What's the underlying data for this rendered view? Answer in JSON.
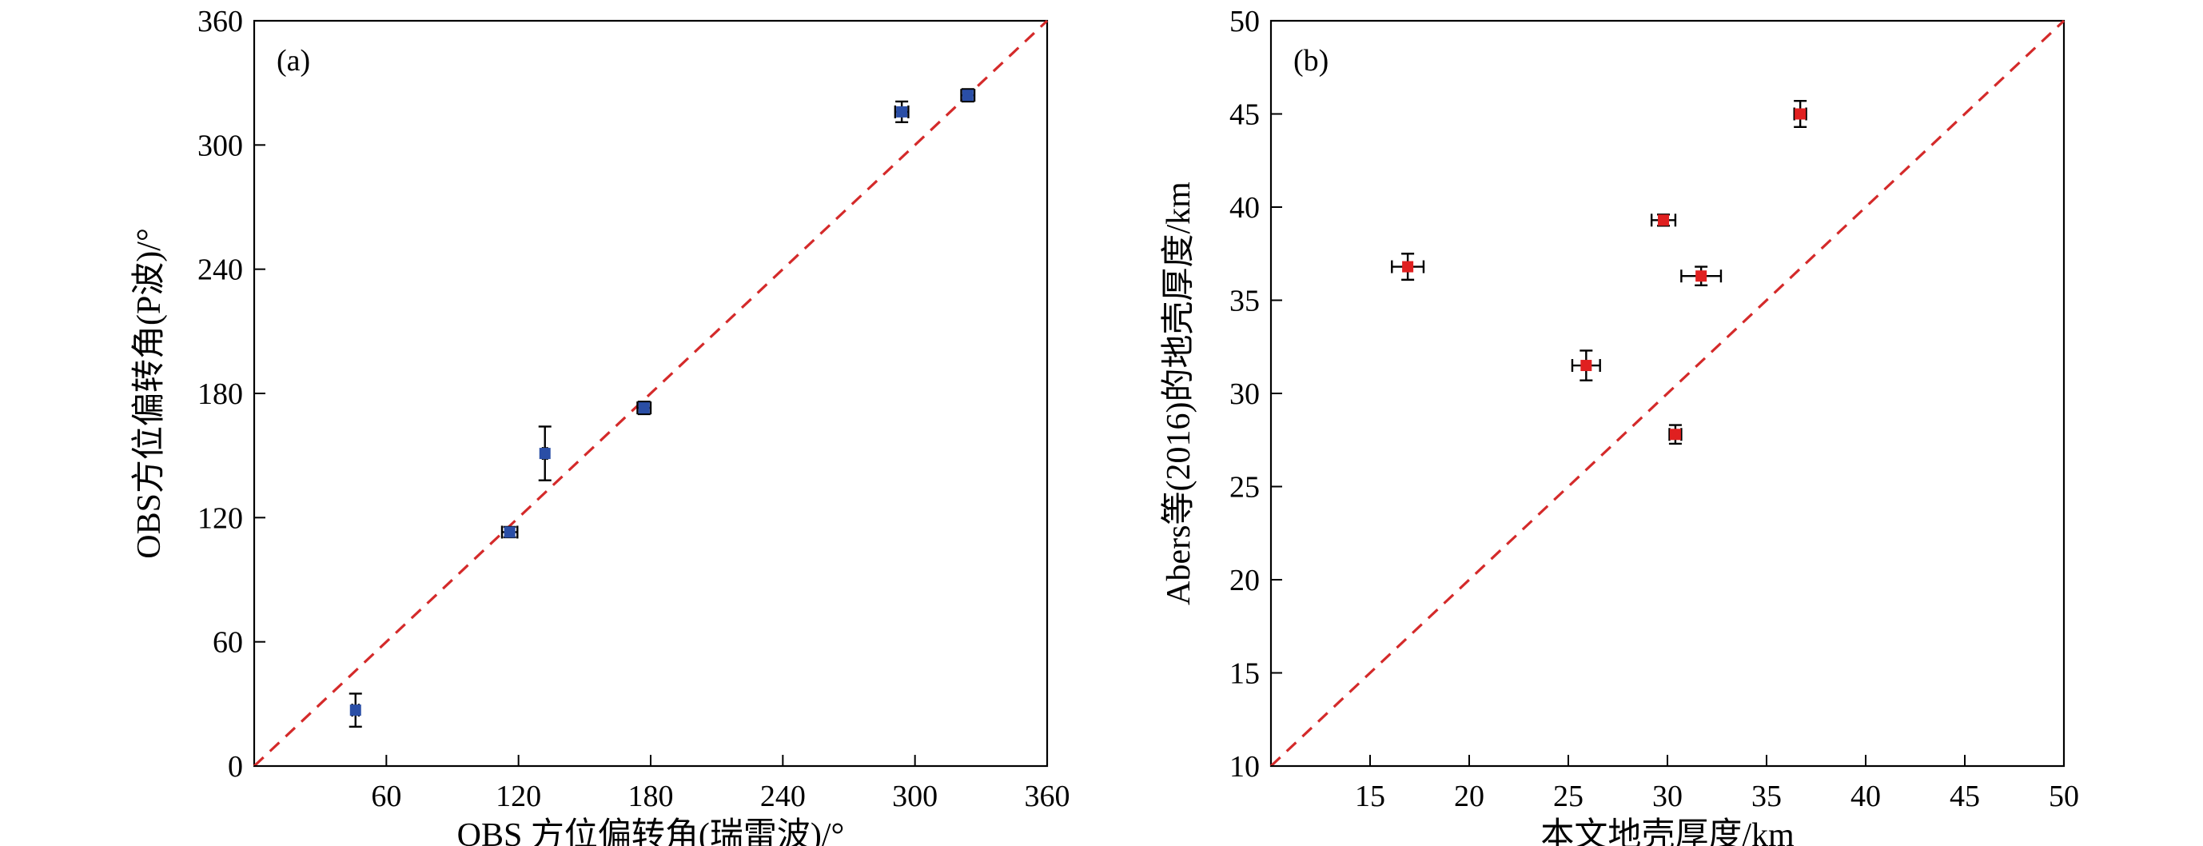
{
  "chart_data": [
    {
      "type": "scatter",
      "panel_label": "(a)",
      "xlabel": "OBS 方位偏转角(瑞雷波)/°",
      "ylabel": "OBS方位偏转角(P波)/°",
      "xlim": [
        0,
        360
      ],
      "ylim": [
        0,
        360
      ],
      "xticks": [
        60,
        120,
        180,
        240,
        300,
        360
      ],
      "yticks": [
        0,
        60,
        120,
        180,
        240,
        300,
        360
      ],
      "grid": false,
      "reference_line": "y = x",
      "marker_color": "#2a4ea6",
      "line_color": "#d42a2a",
      "points": [
        {
          "x": 46,
          "y": 27,
          "xerr": 1.5,
          "yerr": 8
        },
        {
          "x": 116,
          "y": 113,
          "xerr": 3.5,
          "yerr": 2.5
        },
        {
          "x": 132,
          "y": 151,
          "xerr": 1,
          "yerr": 13
        },
        {
          "x": 177,
          "y": 173,
          "xerr": 3,
          "yerr": 3
        },
        {
          "x": 294,
          "y": 316,
          "xerr": 3,
          "yerr": 5
        },
        {
          "x": 324,
          "y": 324,
          "xerr": 3,
          "yerr": 3
        }
      ]
    },
    {
      "type": "scatter",
      "panel_label": "(b)",
      "xlabel": "本文地壳厚度/km",
      "ylabel": "Abers等(2016)的地壳厚度/km",
      "xlim": [
        10,
        50
      ],
      "ylim": [
        10,
        50
      ],
      "xticks": [
        15,
        20,
        25,
        30,
        35,
        40,
        45,
        50
      ],
      "yticks": [
        10,
        15,
        20,
        25,
        30,
        35,
        40,
        45,
        50
      ],
      "grid": false,
      "reference_line": "y = x",
      "marker_color": "#e02020",
      "line_color": "#d42a2a",
      "points": [
        {
          "x": 16.9,
          "y": 36.8,
          "xerr": 0.8,
          "yerr": 0.7
        },
        {
          "x": 25.9,
          "y": 31.5,
          "xerr": 0.7,
          "yerr": 0.8
        },
        {
          "x": 29.8,
          "y": 39.3,
          "xerr": 0.6,
          "yerr": 0.3
        },
        {
          "x": 30.4,
          "y": 27.8,
          "xerr": 0.3,
          "yerr": 0.5
        },
        {
          "x": 31.7,
          "y": 36.3,
          "xerr": 1.0,
          "yerr": 0.5
        },
        {
          "x": 36.7,
          "y": 45.0,
          "xerr": 0.3,
          "yerr": 0.7
        }
      ]
    }
  ]
}
